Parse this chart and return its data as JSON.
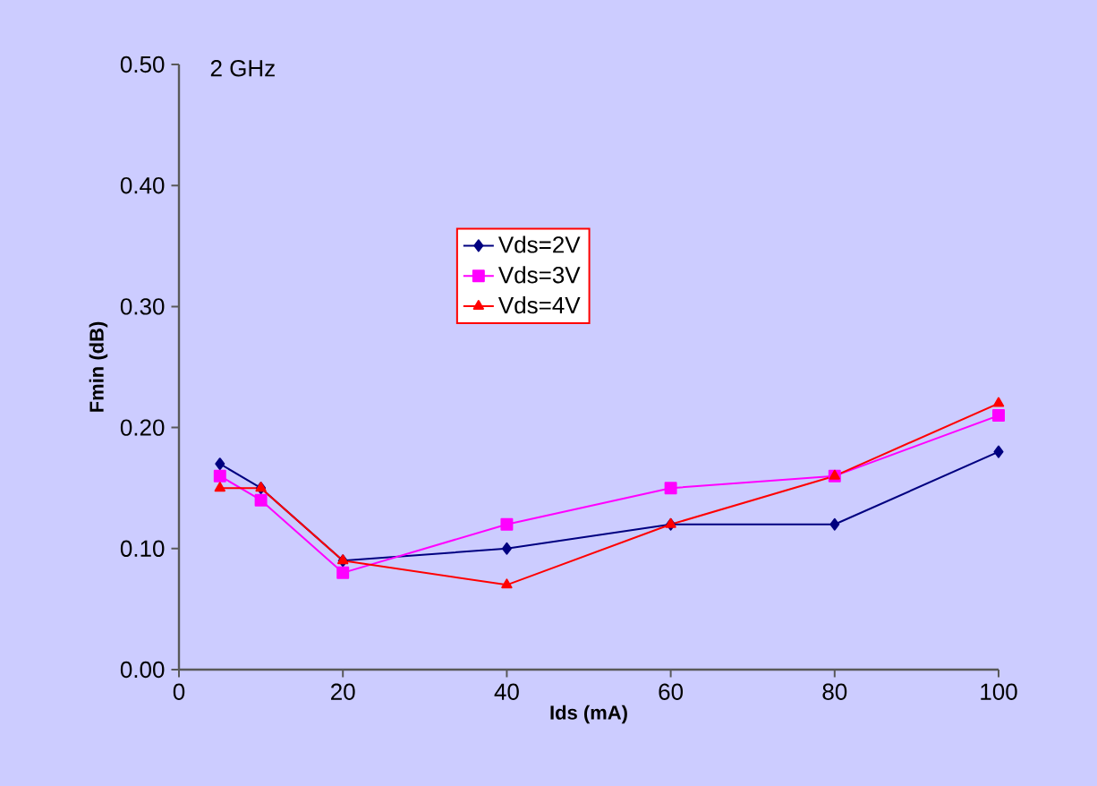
{
  "chart_data": {
    "type": "line",
    "title": "2 GHz",
    "xlabel": "Ids (mA)",
    "ylabel": "Fmin (dB)",
    "x": [
      5,
      10,
      20,
      40,
      60,
      80,
      100
    ],
    "series": [
      {
        "name": "Vds=2V",
        "color": "#000080",
        "marker": "diamond",
        "values": [
          0.17,
          0.15,
          0.09,
          0.1,
          0.12,
          0.12,
          0.18
        ]
      },
      {
        "name": "Vds=3V",
        "color": "#ff00ff",
        "marker": "square",
        "values": [
          0.16,
          0.14,
          0.08,
          0.12,
          0.15,
          0.16,
          0.21
        ]
      },
      {
        "name": "Vds=4V",
        "color": "#ff0000",
        "marker": "triangle",
        "values": [
          0.15,
          0.15,
          0.09,
          0.07,
          0.12,
          0.16,
          0.22
        ]
      }
    ],
    "xlim": [
      0,
      100
    ],
    "xticks": [
      0,
      20,
      40,
      60,
      80,
      100
    ],
    "ylim": [
      0,
      0.5
    ],
    "yticks": [
      {
        "value": 0,
        "label": "0.00"
      },
      {
        "value": 0.1,
        "label": "0.10"
      },
      {
        "value": 0.2,
        "label": "0.20"
      },
      {
        "value": 0.3,
        "label": "0.30"
      },
      {
        "value": 0.4,
        "label": "0.40"
      },
      {
        "value": 0.5,
        "label": "0.50"
      }
    ],
    "legend": "top",
    "grid": false,
    "line_style": "solid"
  }
}
